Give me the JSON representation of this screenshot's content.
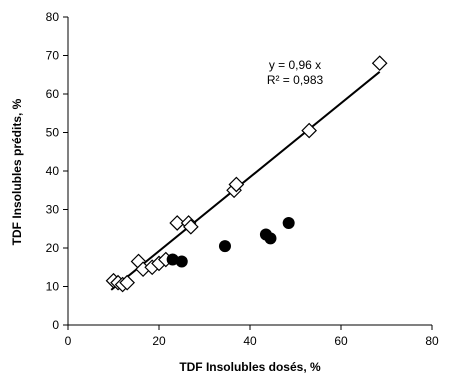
{
  "chart_data": {
    "type": "scatter",
    "xlabel": "TDF Insolubles dosés, %",
    "ylabel": "TDF Insolubles prédits, %",
    "xlim": [
      0,
      80
    ],
    "ylim": [
      0,
      80
    ],
    "xticks": [
      "0",
      "20",
      "40",
      "60",
      "80"
    ],
    "yticks": [
      "0",
      "10",
      "20",
      "30",
      "40",
      "50",
      "60",
      "70",
      "80"
    ],
    "grid": false,
    "series": [
      {
        "marker": "diamond-open",
        "color": "#000000",
        "points": [
          [
            10,
            11.5
          ],
          [
            11,
            11
          ],
          [
            12,
            10.5
          ],
          [
            13,
            11
          ],
          [
            15.5,
            16.5
          ],
          [
            16.5,
            14.5
          ],
          [
            18.5,
            15
          ],
          [
            20,
            16
          ],
          [
            21.5,
            17
          ],
          [
            24,
            26.5
          ],
          [
            26.5,
            26.5
          ],
          [
            27,
            25.5
          ],
          [
            36.5,
            35
          ],
          [
            37,
            36.5
          ],
          [
            53,
            50.5
          ],
          [
            68.5,
            68
          ]
        ]
      },
      {
        "marker": "circle-filled",
        "color": "#000000",
        "points": [
          [
            23,
            17
          ],
          [
            25,
            16.5
          ],
          [
            34.5,
            20.5
          ],
          [
            43.5,
            23.5
          ],
          [
            44.5,
            22.5
          ],
          [
            48.5,
            26.5
          ]
        ]
      }
    ],
    "trendline": {
      "slope": 0.96,
      "x_range": [
        9.5,
        68.5
      ]
    },
    "annotations": {
      "equation": "y = 0,96 x",
      "r2": "R² = 0,983"
    }
  }
}
